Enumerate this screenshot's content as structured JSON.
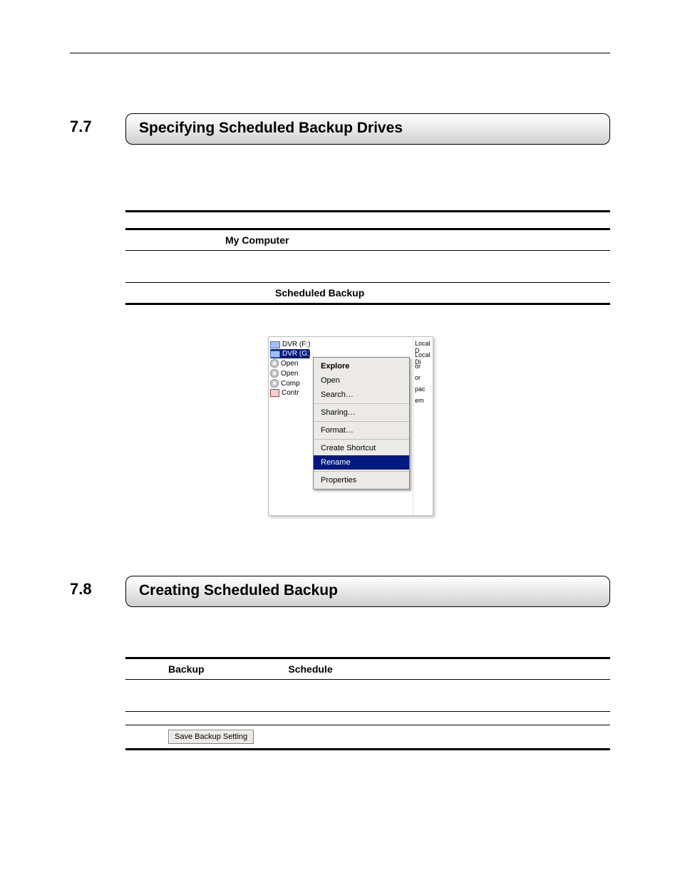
{
  "page_number": "",
  "section_a": {
    "number": "7.7",
    "title": "Specifying Scheduled Backup Drives",
    "rows": {
      "r1_bold": "My Computer",
      "r2_bold": "Scheduled Backup"
    }
  },
  "mock": {
    "left_items": [
      {
        "label": "DVR (F:)",
        "kind": "drive",
        "sel": false
      },
      {
        "label": "DVR (G:)",
        "kind": "drive",
        "sel": true
      },
      {
        "label": "Open",
        "kind": "cd",
        "sel": false
      },
      {
        "label": "Open",
        "kind": "cd",
        "sel": false
      },
      {
        "label": "Comp",
        "kind": "cd",
        "sel": false
      },
      {
        "label": "Contr",
        "kind": "ctrl",
        "sel": false
      }
    ],
    "right_labels": [
      "Local D",
      "Local Di",
      "or",
      "or",
      "pac",
      "em"
    ],
    "menu": [
      {
        "label": "Explore",
        "bold": true
      },
      {
        "label": "Open"
      },
      {
        "label": "Search…"
      },
      {
        "sep": true
      },
      {
        "label": "Sharing…"
      },
      {
        "sep": true
      },
      {
        "label": "Format…"
      },
      {
        "sep": true
      },
      {
        "label": "Create Shortcut"
      },
      {
        "label": "Rename",
        "sel": true
      },
      {
        "sep": true
      },
      {
        "label": "Properties"
      }
    ]
  },
  "section_b": {
    "number": "7.8",
    "title": "Creating Scheduled Backup",
    "row_labels": {
      "a": "Backup",
      "b": "Schedule"
    },
    "button_label": "Save Backup Setting"
  },
  "colors": {
    "selection_bg": "#001a80",
    "menu_bg": "#eceae6",
    "border": "#808080"
  }
}
